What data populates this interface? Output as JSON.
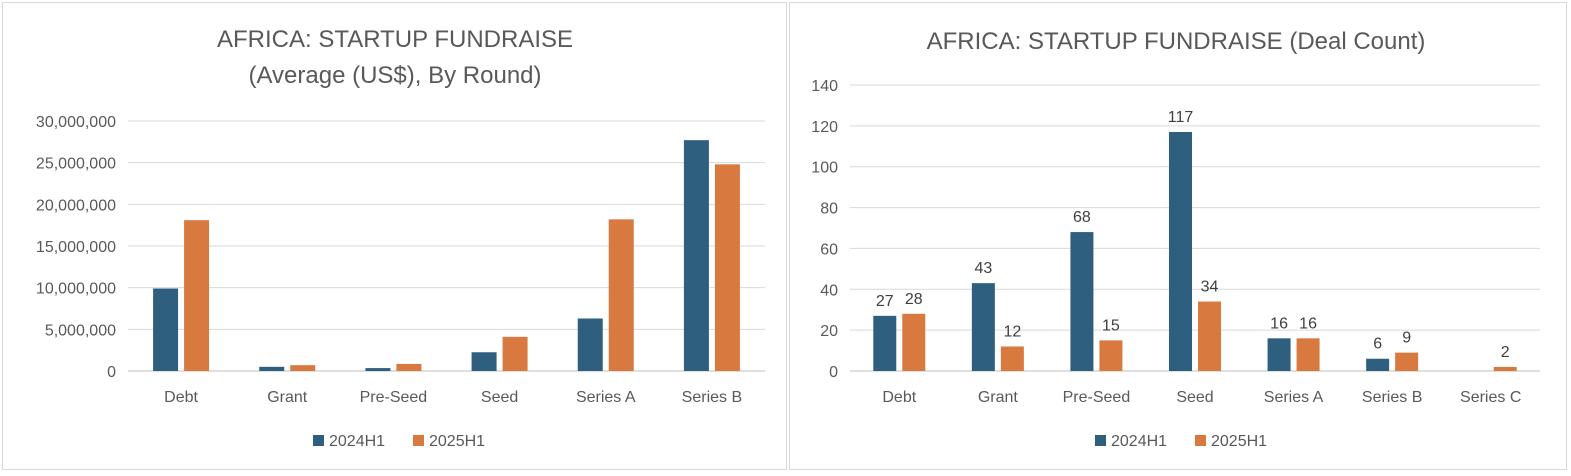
{
  "chart_data": [
    {
      "type": "bar",
      "title": "AFRICA: STARTUP FUNDRAISE",
      "subtitle": "(Average (US$), By Round)",
      "categories": [
        "Debt",
        "Grant",
        "Pre-Seed",
        "Seed",
        "Series A",
        "Series B"
      ],
      "series": [
        {
          "name": "2024H1",
          "values": [
            9900000,
            500000,
            350000,
            2250000,
            6300000,
            27700000
          ]
        },
        {
          "name": "2025H1",
          "values": [
            18100000,
            700000,
            850000,
            4100000,
            18200000,
            24800000
          ]
        }
      ],
      "ylim": [
        0,
        30000000
      ],
      "yticks": [
        0,
        5000000,
        10000000,
        15000000,
        20000000,
        25000000,
        30000000
      ],
      "ytick_labels": [
        "0",
        "5,000,000",
        "10,000,000",
        "15,000,000",
        "20,000,000",
        "25,000,000",
        "30,000,000"
      ],
      "data_labels": false,
      "grid": true,
      "legend": "bottom",
      "colors": [
        "#2e5f7f",
        "#d87a40"
      ]
    },
    {
      "type": "bar",
      "title": "AFRICA: STARTUP FUNDRAISE (Deal Count)",
      "categories": [
        "Debt",
        "Grant",
        "Pre-Seed",
        "Seed",
        "Series A",
        "Series B",
        "Series C"
      ],
      "series": [
        {
          "name": "2024H1",
          "values": [
            27,
            43,
            68,
            117,
            16,
            6,
            null
          ]
        },
        {
          "name": "2025H1",
          "values": [
            28,
            12,
            15,
            34,
            16,
            9,
            2
          ]
        }
      ],
      "ylim": [
        0,
        140
      ],
      "yticks": [
        0,
        20,
        40,
        60,
        80,
        100,
        120,
        140
      ],
      "ytick_labels": [
        "0",
        "20",
        "40",
        "60",
        "80",
        "100",
        "120",
        "140"
      ],
      "data_labels": true,
      "grid": true,
      "legend": "bottom",
      "colors": [
        "#2e5f7f",
        "#d87a40"
      ]
    }
  ]
}
